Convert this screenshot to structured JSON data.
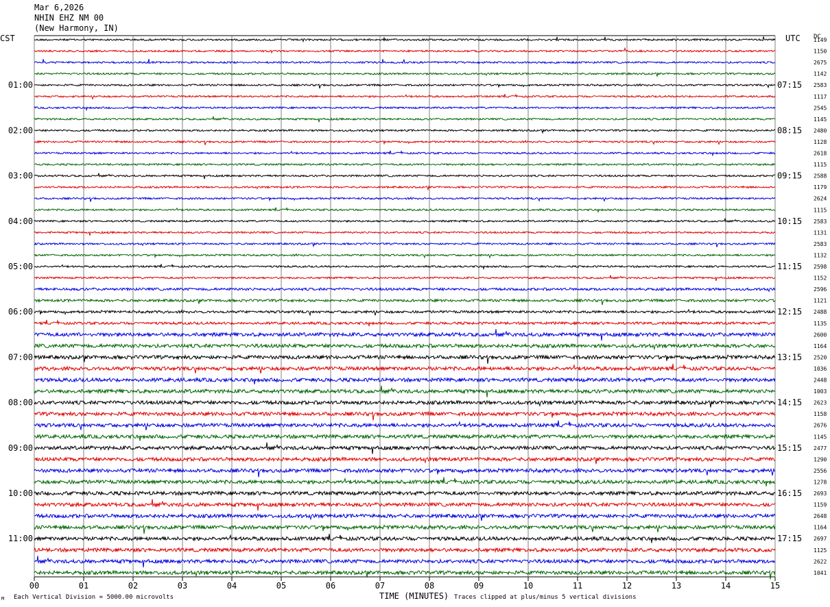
{
  "header": {
    "date": "Mar 6,2026",
    "station": "NHIN EHZ NM 00",
    "location": "(New Harmony, IN)"
  },
  "left_timezone": "CST",
  "right_timezone": "UTC",
  "dc_label": "DC",
  "footer": {
    "scale_note": "Each Vertical Division = 5000.00 microvolts",
    "clip_note": "Traces clipped at plus/minus 5 vertical divisions",
    "corner_mark": "M"
  },
  "colors": {
    "cycle": [
      "#000000",
      "#e00000",
      "#0000e0",
      "#006400"
    ],
    "grid": "#606060"
  },
  "chart_data": {
    "type": "line",
    "title": "NHIN EHZ NM 00",
    "xlabel": "TIME (MINUTES)",
    "x_ticks": [
      "00",
      "01",
      "02",
      "03",
      "04",
      "05",
      "06",
      "07",
      "08",
      "09",
      "10",
      "11",
      "12",
      "13",
      "14",
      "15"
    ],
    "xlim": [
      0,
      15
    ],
    "grid": true,
    "left_hour_labels": [
      "01:00",
      "02:00",
      "03:00",
      "04:00",
      "05:00",
      "06:00",
      "07:00",
      "08:00",
      "09:00",
      "10:00",
      "11:00"
    ],
    "right_hour_labels": [
      "07:15",
      "08:15",
      "09:15",
      "10:15",
      "11:15",
      "12:15",
      "13:15",
      "14:15",
      "15:15",
      "16:15",
      "17:15"
    ],
    "dc_values": [
      "1149",
      "1150",
      "2675",
      "1142",
      "2583",
      "1117",
      "2545",
      "1145",
      "2480",
      "1128",
      "2618",
      "1115",
      "2588",
      "1179",
      "2624",
      "1115",
      "2583",
      "1131",
      "2583",
      "1132",
      "2598",
      "1152",
      "2596",
      "1121",
      "2488",
      "1135",
      "2600",
      "1164",
      "2520",
      "1036",
      "2448",
      "1003",
      "2623",
      "1158",
      "2676",
      "1145",
      "2477",
      "1290",
      "2556",
      "1278",
      "2693",
      "1159",
      "2648",
      "1164",
      "2697",
      "1125",
      "2622",
      "1041"
    ],
    "trace_count": 48,
    "minutes_per_trace": 15
  }
}
